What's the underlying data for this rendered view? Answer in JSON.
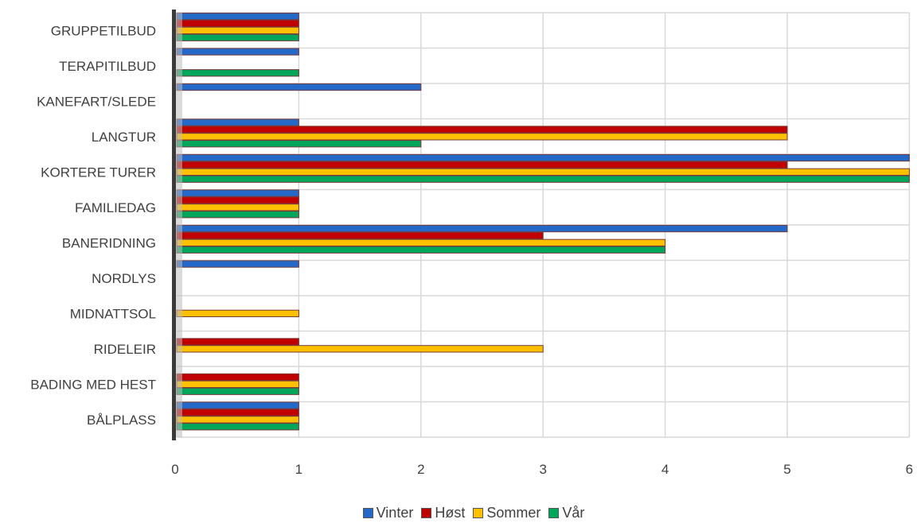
{
  "chart_data": {
    "type": "bar",
    "orientation": "horizontal",
    "categories": [
      "GRUPPETILBUD",
      "TERAPITILBUD",
      "KANEFART/SLEDE",
      "LANGTUR",
      "KORTERE TURER",
      "FAMILIEDAG",
      "BANERIDNING",
      "NORDLYS",
      "MIDNATTSOL",
      "RIDELEIR",
      "BADING MED HEST",
      "BÅLPLASS"
    ],
    "series": [
      {
        "name": "Vinter",
        "color": "#2468c8",
        "values": [
          1,
          1,
          2,
          1,
          6,
          1,
          5,
          1,
          0,
          0,
          0,
          1
        ]
      },
      {
        "name": "Høst",
        "color": "#c00000",
        "values": [
          1,
          0,
          0,
          5,
          5,
          1,
          3,
          0,
          0,
          1,
          1,
          1
        ]
      },
      {
        "name": "Sommer",
        "color": "#ffc000",
        "values": [
          1,
          0,
          0,
          5,
          6,
          1,
          4,
          0,
          1,
          3,
          1,
          1
        ]
      },
      {
        "name": "Vår",
        "color": "#00a65a",
        "values": [
          1,
          1,
          0,
          2,
          6,
          1,
          4,
          0,
          0,
          0,
          1,
          1
        ]
      }
    ],
    "x_ticks": [
      "0",
      "1",
      "2",
      "3",
      "4",
      "5",
      "6"
    ],
    "xlim": [
      0,
      6
    ],
    "grid": true,
    "legend_position": "bottom"
  }
}
